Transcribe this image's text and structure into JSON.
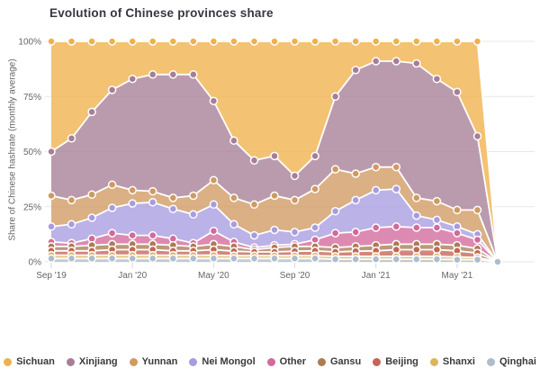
{
  "chart": {
    "title": "Evolution of Chinese provinces share",
    "y_axis_label": "Share of Chinese hashrate (monthly average)",
    "y_tick_labels": [
      "0%",
      "25%",
      "50%",
      "75%",
      "100%"
    ],
    "x_tick_labels": [
      "Sep '19",
      "Jan '20",
      "May '20",
      "Sep '20",
      "Jan '21",
      "May '21"
    ]
  },
  "legend": {
    "items": [
      {
        "label": "Sichuan",
        "color": "#efb14a"
      },
      {
        "label": "Xinjiang",
        "color": "#a67f96"
      },
      {
        "label": "Yunnan",
        "color": "#cf9a62"
      },
      {
        "label": "Nei Mongol",
        "color": "#a89ce0"
      },
      {
        "label": "Other",
        "color": "#d4699c"
      },
      {
        "label": "Gansu",
        "color": "#ab7c52"
      },
      {
        "label": "Beijing",
        "color": "#c4655a"
      },
      {
        "label": "Shanxi",
        "color": "#dcb55e"
      },
      {
        "label": "Qinghai",
        "color": "#aebccb"
      }
    ]
  },
  "chart_data": {
    "type": "area",
    "stacking": "percent",
    "title": "Evolution of Chinese provinces share",
    "ylabel": "Share of Chinese hashrate (monthly average)",
    "ylim": [
      0,
      100
    ],
    "grid": true,
    "legend_position": "bottom",
    "x": [
      "Sep '19",
      "Oct '19",
      "Nov '19",
      "Dec '19",
      "Jan '20",
      "Feb '20",
      "Mar '20",
      "Apr '20",
      "May '20",
      "Jun '20",
      "Jul '20",
      "Aug '20",
      "Sep '20",
      "Oct '20",
      "Nov '20",
      "Dec '20",
      "Jan '21",
      "Feb '21",
      "Mar '21",
      "Apr '21",
      "May '21",
      "Jun '21",
      "Jul '21"
    ],
    "x_tick_indices": [
      0,
      4,
      8,
      12,
      16,
      20
    ],
    "series_note": "values are % share per month; listed bottom-to-top in stacking order",
    "series": [
      {
        "name": "Qinghai",
        "color": "#aebccb",
        "values": [
          1.5,
          1.5,
          1.5,
          1.5,
          1.5,
          1.5,
          1.5,
          1.5,
          1.5,
          1.5,
          1.5,
          1.5,
          1.5,
          1.5,
          1.2,
          1.2,
          1.2,
          1.2,
          1.2,
          1.2,
          1.0,
          1.0,
          0
        ]
      },
      {
        "name": "Shanxi",
        "color": "#dcb55e",
        "values": [
          1.5,
          1.5,
          1.5,
          1.5,
          1.5,
          1.5,
          1.5,
          1.5,
          1.5,
          1.3,
          1.3,
          1.3,
          1.3,
          1.3,
          1.3,
          1.3,
          1.3,
          1.3,
          1.3,
          1.3,
          1.2,
          1.0,
          0
        ]
      },
      {
        "name": "Beijing",
        "color": "#c4655a",
        "values": [
          2,
          2,
          2,
          2.5,
          2.5,
          2.5,
          2,
          2,
          2.5,
          2,
          1.7,
          1.7,
          2,
          2.2,
          2,
          2.3,
          2.5,
          3,
          3,
          3,
          2.8,
          2,
          0
        ]
      },
      {
        "name": "Gansu",
        "color": "#ab7c52",
        "values": [
          2,
          2,
          2.5,
          2.5,
          2.5,
          2.5,
          2.5,
          2,
          2.5,
          2.2,
          1,
          2,
          2.2,
          2,
          2,
          2.2,
          2.5,
          2.5,
          2.5,
          2.5,
          2.5,
          2,
          0
        ]
      },
      {
        "name": "Other",
        "color": "#d4699c",
        "values": [
          2,
          1.5,
          3,
          5,
          4,
          4,
          3,
          1.5,
          6,
          2,
          1,
          1,
          1,
          3,
          6.5,
          6.5,
          8,
          8,
          7.5,
          7.5,
          5.5,
          4,
          0
        ]
      },
      {
        "name": "Nei Mongol",
        "color": "#a89ce0",
        "values": [
          7,
          8.5,
          9.5,
          11.5,
          14.5,
          15,
          13.5,
          13,
          12,
          8,
          5.5,
          7,
          5.5,
          5.5,
          10,
          14.5,
          17,
          17,
          5.5,
          3.5,
          3,
          2.5,
          0
        ]
      },
      {
        "name": "Yunnan",
        "color": "#cf9a62",
        "values": [
          14,
          11,
          10.5,
          10.5,
          6,
          5,
          5,
          8.5,
          11,
          12,
          14,
          15.5,
          14.5,
          17.5,
          19,
          12,
          10.5,
          10,
          8,
          8.5,
          7.5,
          11,
          0
        ]
      },
      {
        "name": "Xinjiang",
        "color": "#a67f96",
        "values": [
          20,
          28,
          37.5,
          43,
          50.5,
          53,
          56,
          55,
          36,
          26,
          20,
          18,
          11,
          15,
          33,
          47,
          48,
          48,
          61,
          55.5,
          53.5,
          33.5,
          0
        ]
      },
      {
        "name": "Sichuan",
        "color": "#efb14a",
        "values": [
          50,
          44,
          32,
          22,
          17,
          15,
          15,
          15,
          27,
          45,
          54,
          52,
          61,
          52,
          25,
          13,
          9,
          9,
          10,
          17,
          23,
          43,
          0
        ]
      }
    ]
  }
}
